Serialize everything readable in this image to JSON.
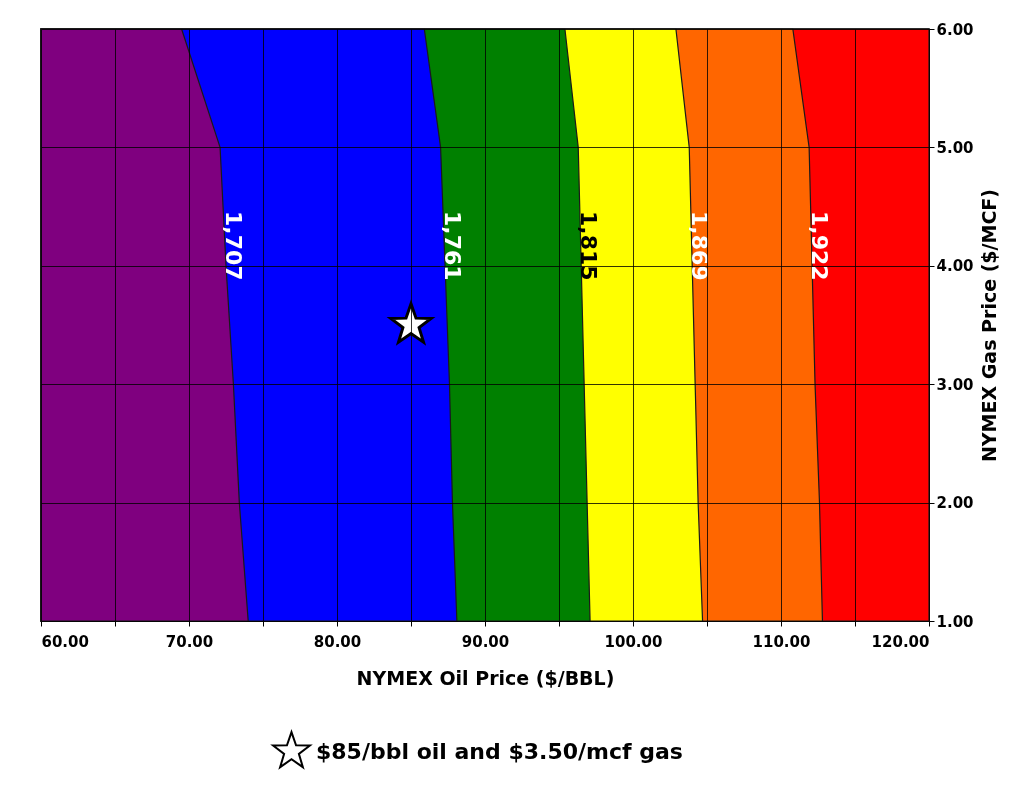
{
  "chart_data": {
    "type": "area",
    "orientation": "horizontal",
    "xlabel": "NYMEX Oil Price ($/BBL)",
    "ylabel": "NYMEX Gas Price ($/MCF)",
    "xlim": [
      60,
      120
    ],
    "ylim": [
      1,
      6
    ],
    "xticks": [
      {
        "value": 60,
        "label": "60.00"
      },
      {
        "value": 65,
        "label": null
      },
      {
        "value": 70,
        "label": "70.00"
      },
      {
        "value": 75,
        "label": null
      },
      {
        "value": 80,
        "label": "80.00"
      },
      {
        "value": 85,
        "label": null
      },
      {
        "value": 90,
        "label": "90.00"
      },
      {
        "value": 95,
        "label": null
      },
      {
        "value": 100,
        "label": "100.00"
      },
      {
        "value": 105,
        "label": null
      },
      {
        "value": 110,
        "label": "110.00"
      },
      {
        "value": 115,
        "label": null
      },
      {
        "value": 120,
        "label": "120.00"
      }
    ],
    "yticks": [
      {
        "value": 1,
        "label": "1.00"
      },
      {
        "value": 2,
        "label": "2.00"
      },
      {
        "value": 3,
        "label": "3.00"
      },
      {
        "value": 4,
        "label": "4.00"
      },
      {
        "value": 5,
        "label": "5.00"
      },
      {
        "value": 6,
        "label": "6.00"
      }
    ],
    "grid": true,
    "legend": "bottom",
    "x": [
      1,
      2,
      3,
      4,
      5,
      6
    ],
    "series": [
      {
        "name": "1,707",
        "color": "#7f007f",
        "values": [
          74.0,
          73.4,
          73.0,
          72.5,
          72.1,
          69.5
        ]
      },
      {
        "name": "1,761",
        "color": "#0000ff",
        "values": [
          88.1,
          87.8,
          87.6,
          87.3,
          87.0,
          85.9
        ]
      },
      {
        "name": "1,815",
        "color": "#008000",
        "values": [
          97.1,
          96.9,
          96.7,
          96.5,
          96.3,
          95.4
        ]
      },
      {
        "name": "1,869",
        "color": "#ffff00",
        "values": [
          104.7,
          104.4,
          104.2,
          104.0,
          103.8,
          102.9
        ]
      },
      {
        "name": "1,922",
        "color": "#ff6600",
        "values": [
          112.8,
          112.6,
          112.3,
          112.1,
          111.9,
          110.8
        ]
      },
      {
        "color": "#ff0000",
        "values": [
          120,
          120,
          120,
          120,
          120,
          120
        ]
      },
      {
        "name": "$85/bbl oil and $3.50/mcf gas",
        "type": "scatter",
        "marker": "star",
        "color": "#ffffff",
        "x": [
          3.5
        ],
        "values": [
          85
        ]
      }
    ]
  }
}
